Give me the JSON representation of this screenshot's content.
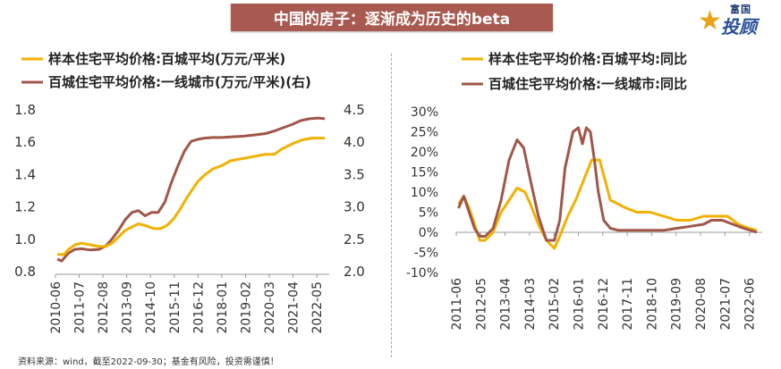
{
  "header": {
    "title": "中国的房子：逐渐成为历史的beta"
  },
  "brand": {
    "line1": "富国",
    "line2": "投顾",
    "star": "★"
  },
  "footer": {
    "source": "资料来源：wind，截至2022-09-30；基金有风险，投资需谨慎！"
  },
  "colors": {
    "gold": "#f2b100",
    "brown": "#a0574a"
  },
  "chart_data": [
    {
      "type": "line",
      "legend": [
        "样本住宅平均价格:百城平均(万元/平米)",
        "百城住宅平均价格:一线城市(万元/平米)(右)"
      ],
      "x_ticks": [
        "2010-06",
        "2011-07",
        "2012-08",
        "2013-09",
        "2014-10",
        "2015-11",
        "2016-12",
        "2018-01",
        "2019-02",
        "2020-03",
        "2021-04",
        "2022-05"
      ],
      "ylim": [
        0.8,
        1.8
      ],
      "y_ticks": [
        "0.8",
        "1.0",
        "1.2",
        "1.4",
        "1.6",
        "1.8"
      ],
      "y2lim": [
        2.0,
        4.5
      ],
      "y2_ticks": [
        "2.0",
        "2.5",
        "3.0",
        "3.5",
        "4.0",
        "4.5"
      ],
      "series": [
        {
          "name": "百城平均",
          "axis": "left",
          "x": [
            2010.5,
            2010.8,
            2011.0,
            2011.3,
            2011.6,
            2012.0,
            2012.4,
            2012.7,
            2013.0,
            2013.3,
            2013.6,
            2013.9,
            2014.2,
            2014.5,
            2014.9,
            2015.2,
            2015.5,
            2015.8,
            2016.1,
            2016.4,
            2016.7,
            2016.9,
            2017.2,
            2017.6,
            2018.0,
            2018.4,
            2018.8,
            2019.2,
            2019.6,
            2020.0,
            2020.4,
            2020.7,
            2021.0,
            2021.3,
            2021.7,
            2022.1,
            2022.4,
            2022.7
          ],
          "values": [
            0.9,
            0.9,
            0.93,
            0.96,
            0.97,
            0.96,
            0.95,
            0.95,
            0.97,
            1.01,
            1.05,
            1.07,
            1.09,
            1.08,
            1.06,
            1.06,
            1.08,
            1.12,
            1.18,
            1.25,
            1.31,
            1.35,
            1.39,
            1.43,
            1.45,
            1.48,
            1.49,
            1.5,
            1.51,
            1.52,
            1.52,
            1.55,
            1.57,
            1.59,
            1.61,
            1.62,
            1.62,
            1.62
          ]
        },
        {
          "name": "一线城市",
          "axis": "right",
          "x": [
            2010.5,
            2010.7,
            2011.0,
            2011.3,
            2011.6,
            2012.0,
            2012.4,
            2012.7,
            2013.0,
            2013.3,
            2013.6,
            2013.9,
            2014.2,
            2014.5,
            2014.8,
            2015.1,
            2015.4,
            2015.7,
            2016.0,
            2016.3,
            2016.6,
            2016.9,
            2017.2,
            2017.6,
            2018.0,
            2018.5,
            2019.0,
            2019.5,
            2020.0,
            2020.4,
            2020.8,
            2021.2,
            2021.6,
            2022.0,
            2022.4,
            2022.7
          ],
          "values": [
            2.18,
            2.15,
            2.27,
            2.33,
            2.34,
            2.32,
            2.33,
            2.38,
            2.49,
            2.63,
            2.79,
            2.9,
            2.93,
            2.85,
            2.9,
            2.9,
            3.06,
            3.36,
            3.62,
            3.85,
            4.0,
            4.03,
            4.05,
            4.06,
            4.06,
            4.07,
            4.08,
            4.1,
            4.12,
            4.16,
            4.21,
            4.26,
            4.32,
            4.35,
            4.36,
            4.35
          ]
        }
      ]
    },
    {
      "type": "line",
      "legend": [
        "样本住宅平均价格:百城平均:同比",
        "百城住宅平均价格:一线城市:同比"
      ],
      "x_ticks": [
        "2011-06",
        "2012-05",
        "2013-04",
        "2014-03",
        "2015-02",
        "2016-01",
        "2016-12",
        "2017-11",
        "2018-10",
        "2019-09",
        "2020-08",
        "2021-07",
        "2022-06"
      ],
      "ylim": [
        -10,
        30
      ],
      "y_ticks": [
        "-10%",
        "-5%",
        "0%",
        "5%",
        "10%",
        "15%",
        "20%",
        "25%",
        "30%"
      ],
      "series": [
        {
          "name": "百城平均同比",
          "x": [
            2011.5,
            2011.7,
            2011.9,
            2012.1,
            2012.3,
            2012.5,
            2012.8,
            2013.1,
            2013.4,
            2013.7,
            2014.0,
            2014.2,
            2014.5,
            2014.8,
            2015.1,
            2015.3,
            2015.6,
            2015.9,
            2016.2,
            2016.5,
            2016.8,
            2017.0,
            2017.2,
            2017.5,
            2017.8,
            2018.2,
            2018.7,
            2019.2,
            2019.7,
            2020.2,
            2020.7,
            2021.1,
            2021.6,
            2022.0,
            2022.4,
            2022.7
          ],
          "values": [
            7,
            9,
            6,
            2,
            -2,
            -2,
            0,
            5,
            8,
            11,
            10,
            7,
            2,
            -2,
            -4,
            -1,
            4,
            8,
            13,
            18,
            18,
            13,
            8,
            7,
            6,
            5,
            5,
            4,
            3,
            3,
            4,
            4,
            4,
            2,
            1,
            0.5
          ]
        },
        {
          "name": "一线城市同比",
          "x": [
            2011.5,
            2011.7,
            2011.9,
            2012.1,
            2012.3,
            2012.5,
            2012.8,
            2013.1,
            2013.4,
            2013.7,
            2013.95,
            2014.2,
            2014.5,
            2014.8,
            2015.1,
            2015.3,
            2015.5,
            2015.8,
            2016.0,
            2016.15,
            2016.3,
            2016.45,
            2016.6,
            2016.75,
            2016.95,
            2017.2,
            2017.5,
            2017.8,
            2018.2,
            2018.7,
            2019.2,
            2019.7,
            2020.2,
            2020.7,
            2021.0,
            2021.4,
            2021.8,
            2022.2,
            2022.7
          ],
          "values": [
            6,
            9,
            5,
            1,
            -1,
            -1,
            1,
            8,
            18,
            23,
            21,
            13,
            4,
            -2,
            -2,
            3,
            16,
            25,
            26,
            22,
            26,
            25,
            18,
            10,
            3,
            1,
            0.5,
            0.5,
            0.5,
            0.5,
            0.5,
            1,
            1.5,
            2,
            3,
            3,
            2,
            1,
            0
          ]
        }
      ]
    }
  ]
}
